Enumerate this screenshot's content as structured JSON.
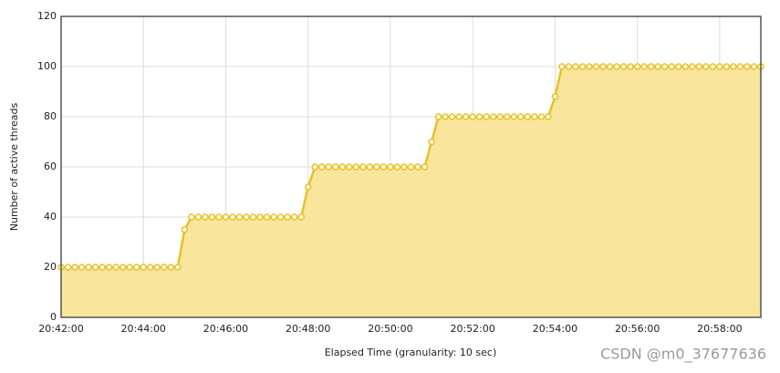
{
  "chart_data": {
    "type": "area",
    "x_label": "Elapsed Time (granularity: 10 sec)",
    "y_label": "Number of active threads",
    "watermark": "CSDN @m0_37677636",
    "line_color": "#e6c12b",
    "fill_color": "#f9e59b",
    "marker_fill": "#fffbe0",
    "grid": true,
    "xlim": [
      "20:42:00",
      "20:59:00"
    ],
    "xticks": [
      "20:42:00",
      "20:44:00",
      "20:46:00",
      "20:48:00",
      "20:50:00",
      "20:52:00",
      "20:54:00",
      "20:56:00",
      "20:58:00"
    ],
    "ylim": [
      0,
      120
    ],
    "yticks": [
      0,
      20,
      40,
      60,
      80,
      100,
      120
    ],
    "x": [
      "20:42:00",
      "20:42:10",
      "20:42:20",
      "20:42:30",
      "20:42:40",
      "20:42:50",
      "20:43:00",
      "20:43:10",
      "20:43:20",
      "20:43:30",
      "20:43:40",
      "20:43:50",
      "20:44:00",
      "20:44:10",
      "20:44:20",
      "20:44:30",
      "20:44:40",
      "20:44:50",
      "20:45:00",
      "20:45:10",
      "20:45:20",
      "20:45:30",
      "20:45:40",
      "20:45:50",
      "20:46:00",
      "20:46:10",
      "20:46:20",
      "20:46:30",
      "20:46:40",
      "20:46:50",
      "20:47:00",
      "20:47:10",
      "20:47:20",
      "20:47:30",
      "20:47:40",
      "20:47:50",
      "20:48:00",
      "20:48:10",
      "20:48:20",
      "20:48:30",
      "20:48:40",
      "20:48:50",
      "20:49:00",
      "20:49:10",
      "20:49:20",
      "20:49:30",
      "20:49:40",
      "20:49:50",
      "20:50:00",
      "20:50:10",
      "20:50:20",
      "20:50:30",
      "20:50:40",
      "20:50:50",
      "20:51:00",
      "20:51:10",
      "20:51:20",
      "20:51:30",
      "20:51:40",
      "20:51:50",
      "20:52:00",
      "20:52:10",
      "20:52:20",
      "20:52:30",
      "20:52:40",
      "20:52:50",
      "20:53:00",
      "20:53:10",
      "20:53:20",
      "20:53:30",
      "20:53:40",
      "20:53:50",
      "20:54:00",
      "20:54:10",
      "20:54:20",
      "20:54:30",
      "20:54:40",
      "20:54:50",
      "20:55:00",
      "20:55:10",
      "20:55:20",
      "20:55:30",
      "20:55:40",
      "20:55:50",
      "20:56:00",
      "20:56:10",
      "20:56:20",
      "20:56:30",
      "20:56:40",
      "20:56:50",
      "20:57:00",
      "20:57:10",
      "20:57:20",
      "20:57:30",
      "20:57:40",
      "20:57:50",
      "20:58:00",
      "20:58:10",
      "20:58:20",
      "20:58:30",
      "20:58:40",
      "20:58:50",
      "20:59:00"
    ],
    "values": [
      20,
      20,
      20,
      20,
      20,
      20,
      20,
      20,
      20,
      20,
      20,
      20,
      20,
      20,
      20,
      20,
      20,
      20,
      35,
      40,
      40,
      40,
      40,
      40,
      40,
      40,
      40,
      40,
      40,
      40,
      40,
      40,
      40,
      40,
      40,
      40,
      52,
      60,
      60,
      60,
      60,
      60,
      60,
      60,
      60,
      60,
      60,
      60,
      60,
      60,
      60,
      60,
      60,
      60,
      70,
      80,
      80,
      80,
      80,
      80,
      80,
      80,
      80,
      80,
      80,
      80,
      80,
      80,
      80,
      80,
      80,
      80,
      88,
      100,
      100,
      100,
      100,
      100,
      100,
      100,
      100,
      100,
      100,
      100,
      100,
      100,
      100,
      100,
      100,
      100,
      100,
      100,
      100,
      100,
      100,
      100,
      100,
      100,
      100,
      100,
      100,
      100,
      100
    ]
  }
}
